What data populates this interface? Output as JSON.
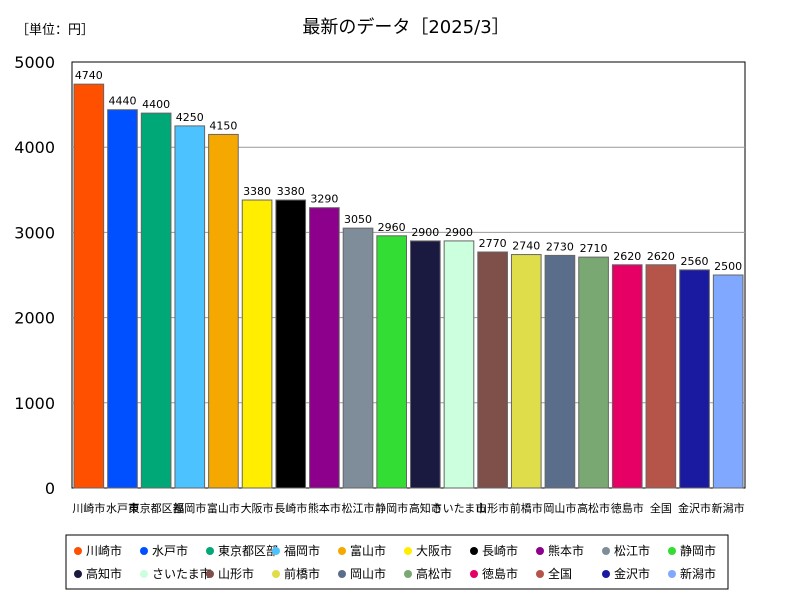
{
  "unit_label": "［単位：円］",
  "chart_data": {
    "type": "bar",
    "title": "最新のデータ［2025/3］",
    "xlabel": "",
    "ylabel": "",
    "ylim": [
      0,
      5000
    ],
    "yticks": [
      0,
      1000,
      2000,
      3000,
      4000,
      5000
    ],
    "grid": true,
    "legend_position": "bottom",
    "categories": [
      "川崎市",
      "水戸市",
      "東京都区部",
      "福岡市",
      "富山市",
      "大阪市",
      "長崎市",
      "熊本市",
      "松江市",
      "静岡市",
      "高知市",
      "さいたま市",
      "山形市",
      "前橋市",
      "岡山市",
      "高松市",
      "徳島市",
      "全国",
      "金沢市",
      "新潟市"
    ],
    "values": [
      4740,
      4440,
      4400,
      4250,
      4150,
      3380,
      3380,
      3290,
      3050,
      2960,
      2900,
      2900,
      2770,
      2740,
      2730,
      2710,
      2620,
      2620,
      2560,
      2500
    ],
    "colors": [
      "#ff5000",
      "#0050ff",
      "#00a878",
      "#4cc3ff",
      "#f5a800",
      "#ffee00",
      "#000000",
      "#8c008c",
      "#7f8c99",
      "#33dd33",
      "#1a1a40",
      "#ccffdd",
      "#7f4f4a",
      "#e0dd4a",
      "#5a6e8c",
      "#7aa873",
      "#e60066",
      "#b5554a",
      "#1a1aa0",
      "#80a8ff"
    ]
  }
}
